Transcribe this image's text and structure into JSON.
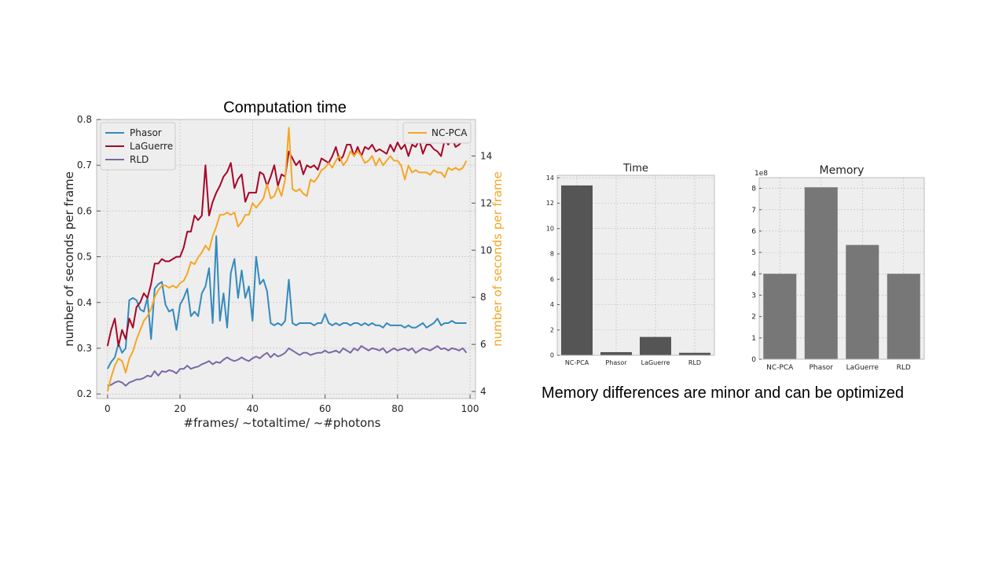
{
  "slide": {
    "title": "Computation time",
    "caption": "Memory differences are minor and can be optimized"
  },
  "colors": {
    "phasor": "#348abd",
    "laguerre": "#a60628",
    "rld": "#7a68a6",
    "ncpca": "#f5a623",
    "bar_time": "#555555",
    "bar_memory": "#777777",
    "plot_bg": "#eeeeee",
    "grid": "#bbbbbb"
  },
  "chart_data": [
    {
      "id": "main",
      "type": "line",
      "xlabel": "#frames/ ~totaltime/ ~#photons",
      "ylabel": "number of seconds per frame",
      "y2label": "number of seconds per frame",
      "xlim": [
        -3,
        101.5
      ],
      "ylim": [
        0.19,
        0.8
      ],
      "y2lim": [
        3.7,
        15.55
      ],
      "xticks": [
        0,
        20,
        40,
        60,
        80,
        100
      ],
      "yticks": [
        0.2,
        0.3,
        0.4,
        0.5,
        0.6,
        0.7,
        0.8
      ],
      "y2ticks": [
        4,
        6,
        8,
        10,
        12,
        14
      ],
      "grid": true,
      "legend_left_position": "top-left",
      "legend_right_position": "top-right",
      "series": [
        {
          "name": "Phasor",
          "axis": "left",
          "color": "#348abd",
          "x": [
            0,
            1,
            2,
            3,
            4,
            5,
            6,
            7,
            8,
            9,
            10,
            11,
            12,
            13,
            14,
            15,
            16,
            17,
            18,
            19,
            20,
            21,
            22,
            23,
            24,
            25,
            26,
            27,
            28,
            29,
            30,
            31,
            32,
            33,
            34,
            35,
            36,
            37,
            38,
            39,
            40,
            41,
            42,
            43,
            44,
            45,
            46,
            47,
            48,
            49,
            50,
            51,
            52,
            53,
            54,
            55,
            56,
            57,
            58,
            59,
            60,
            61,
            62,
            63,
            64,
            65,
            66,
            67,
            68,
            69,
            70,
            71,
            72,
            73,
            74,
            75,
            76,
            77,
            78,
            79,
            80,
            81,
            82,
            83,
            84,
            85,
            86,
            87,
            88,
            89,
            90,
            91,
            92,
            93,
            94,
            95,
            96,
            97,
            98,
            99
          ],
          "values": [
            0.255,
            0.27,
            0.28,
            0.31,
            0.29,
            0.3,
            0.405,
            0.41,
            0.405,
            0.385,
            0.38,
            0.41,
            0.32,
            0.43,
            0.44,
            0.445,
            0.395,
            0.38,
            0.385,
            0.34,
            0.395,
            0.41,
            0.43,
            0.37,
            0.38,
            0.37,
            0.42,
            0.435,
            0.475,
            0.355,
            0.545,
            0.36,
            0.42,
            0.345,
            0.465,
            0.495,
            0.41,
            0.47,
            0.41,
            0.435,
            0.36,
            0.5,
            0.44,
            0.45,
            0.425,
            0.355,
            0.35,
            0.355,
            0.35,
            0.36,
            0.45,
            0.355,
            0.35,
            0.355,
            0.355,
            0.355,
            0.355,
            0.35,
            0.355,
            0.355,
            0.375,
            0.355,
            0.35,
            0.355,
            0.35,
            0.355,
            0.355,
            0.35,
            0.355,
            0.355,
            0.35,
            0.355,
            0.35,
            0.355,
            0.35,
            0.35,
            0.345,
            0.355,
            0.35,
            0.35,
            0.35,
            0.35,
            0.345,
            0.35,
            0.345,
            0.345,
            0.35,
            0.355,
            0.345,
            0.35,
            0.355,
            0.365,
            0.35,
            0.355,
            0.355,
            0.36,
            0.355,
            0.355,
            0.355,
            0.355
          ]
        },
        {
          "name": "LaGuerre",
          "axis": "left",
          "color": "#a60628",
          "x": [
            0,
            1,
            2,
            3,
            4,
            5,
            6,
            7,
            8,
            9,
            10,
            11,
            12,
            13,
            14,
            15,
            16,
            17,
            18,
            19,
            20,
            21,
            22,
            23,
            24,
            25,
            26,
            27,
            28,
            29,
            30,
            31,
            32,
            33,
            34,
            35,
            36,
            37,
            38,
            39,
            40,
            41,
            42,
            43,
            44,
            45,
            46,
            47,
            48,
            49,
            50,
            51,
            52,
            53,
            54,
            55,
            56,
            57,
            58,
            59,
            60,
            61,
            62,
            63,
            64,
            65,
            66,
            67,
            68,
            69,
            70,
            71,
            72,
            73,
            74,
            75,
            76,
            77,
            78,
            79,
            80,
            81,
            82,
            83,
            84,
            85,
            86,
            87,
            88,
            89,
            90,
            91,
            92,
            93,
            94,
            95,
            96,
            97,
            98,
            99
          ],
          "values": [
            0.305,
            0.34,
            0.365,
            0.305,
            0.34,
            0.32,
            0.365,
            0.345,
            0.39,
            0.4,
            0.42,
            0.41,
            0.44,
            0.485,
            0.485,
            0.495,
            0.49,
            0.49,
            0.495,
            0.5,
            0.5,
            0.52,
            0.555,
            0.555,
            0.59,
            0.58,
            0.59,
            0.7,
            0.59,
            0.62,
            0.64,
            0.655,
            0.675,
            0.685,
            0.705,
            0.65,
            0.67,
            0.68,
            0.62,
            0.64,
            0.64,
            0.64,
            0.685,
            0.68,
            0.655,
            0.675,
            0.7,
            0.655,
            0.68,
            0.675,
            0.73,
            0.715,
            0.7,
            0.71,
            0.68,
            0.7,
            0.695,
            0.7,
            0.69,
            0.715,
            0.71,
            0.705,
            0.72,
            0.74,
            0.71,
            0.72,
            0.745,
            0.745,
            0.72,
            0.74,
            0.72,
            0.74,
            0.735,
            0.745,
            0.73,
            0.735,
            0.73,
            0.725,
            0.745,
            0.73,
            0.75,
            0.735,
            0.745,
            0.72,
            0.745,
            0.74,
            0.755,
            0.725,
            0.745,
            0.745,
            0.735,
            0.73,
            0.72,
            0.755,
            0.745,
            0.76,
            0.74,
            0.745,
            0.755,
            0.75
          ]
        },
        {
          "name": "RLD",
          "axis": "left",
          "color": "#7a68a6",
          "x": [
            0,
            1,
            2,
            3,
            4,
            5,
            6,
            7,
            8,
            9,
            10,
            11,
            12,
            13,
            14,
            15,
            16,
            17,
            18,
            19,
            20,
            21,
            22,
            23,
            24,
            25,
            26,
            27,
            28,
            29,
            30,
            31,
            32,
            33,
            34,
            35,
            36,
            37,
            38,
            39,
            40,
            41,
            42,
            43,
            44,
            45,
            46,
            47,
            48,
            49,
            50,
            51,
            52,
            53,
            54,
            55,
            56,
            57,
            58,
            59,
            60,
            61,
            62,
            63,
            64,
            65,
            66,
            67,
            68,
            69,
            70,
            71,
            72,
            73,
            74,
            75,
            76,
            77,
            78,
            79,
            80,
            81,
            82,
            83,
            84,
            85,
            86,
            87,
            88,
            89,
            90,
            91,
            92,
            93,
            94,
            95,
            96,
            97,
            98,
            99
          ],
          "values": [
            0.218,
            0.22,
            0.225,
            0.228,
            0.225,
            0.218,
            0.225,
            0.228,
            0.232,
            0.232,
            0.235,
            0.24,
            0.238,
            0.25,
            0.24,
            0.25,
            0.248,
            0.252,
            0.25,
            0.245,
            0.255,
            0.255,
            0.262,
            0.255,
            0.258,
            0.26,
            0.265,
            0.268,
            0.272,
            0.265,
            0.27,
            0.268,
            0.275,
            0.28,
            0.275,
            0.272,
            0.275,
            0.28,
            0.275,
            0.272,
            0.278,
            0.282,
            0.278,
            0.285,
            0.29,
            0.28,
            0.288,
            0.282,
            0.285,
            0.29,
            0.3,
            0.295,
            0.29,
            0.285,
            0.29,
            0.29,
            0.285,
            0.288,
            0.29,
            0.29,
            0.295,
            0.29,
            0.292,
            0.295,
            0.29,
            0.3,
            0.295,
            0.29,
            0.3,
            0.295,
            0.305,
            0.3,
            0.295,
            0.3,
            0.298,
            0.295,
            0.3,
            0.29,
            0.295,
            0.3,
            0.295,
            0.298,
            0.3,
            0.295,
            0.3,
            0.29,
            0.295,
            0.3,
            0.298,
            0.295,
            0.3,
            0.305,
            0.298,
            0.3,
            0.295,
            0.3,
            0.298,
            0.295,
            0.3,
            0.29
          ]
        },
        {
          "name": "NC-PCA",
          "axis": "right",
          "color": "#f5a623",
          "x": [
            0,
            1,
            2,
            3,
            4,
            5,
            6,
            7,
            8,
            9,
            10,
            11,
            12,
            13,
            14,
            15,
            16,
            17,
            18,
            19,
            20,
            21,
            22,
            23,
            24,
            25,
            26,
            27,
            28,
            29,
            30,
            31,
            32,
            33,
            34,
            35,
            36,
            37,
            38,
            39,
            40,
            41,
            42,
            43,
            44,
            45,
            46,
            47,
            48,
            49,
            50,
            51,
            52,
            53,
            54,
            55,
            56,
            57,
            58,
            59,
            60,
            61,
            62,
            63,
            64,
            65,
            66,
            67,
            68,
            69,
            70,
            71,
            72,
            73,
            74,
            75,
            76,
            77,
            78,
            79,
            80,
            81,
            82,
            83,
            84,
            85,
            86,
            87,
            88,
            89,
            90,
            91,
            92,
            93,
            94,
            95,
            96,
            97,
            98,
            99
          ],
          "values": [
            4.0,
            4.6,
            5.1,
            5.4,
            5.3,
            4.8,
            5.4,
            5.7,
            6.2,
            6.6,
            7.0,
            7.2,
            7.5,
            8.0,
            8.3,
            8.5,
            8.5,
            8.4,
            8.5,
            8.4,
            8.6,
            8.7,
            9.0,
            9.5,
            9.4,
            9.7,
            9.9,
            10.2,
            10.0,
            10.6,
            11.0,
            11.5,
            11.5,
            11.6,
            11.5,
            11.6,
            11.0,
            11.2,
            11.5,
            11.5,
            12.0,
            11.8,
            12.0,
            12.2,
            12.8,
            12.2,
            12.3,
            12.7,
            12.3,
            13.0,
            15.2,
            12.6,
            12.5,
            12.6,
            12.4,
            12.3,
            13.0,
            12.9,
            13.1,
            13.4,
            13.5,
            13.7,
            13.5,
            13.8,
            14.0,
            13.6,
            13.8,
            14.2,
            14.0,
            14.2,
            14.0,
            13.7,
            13.8,
            14.0,
            13.6,
            13.9,
            13.6,
            13.8,
            14.0,
            13.8,
            13.8,
            13.6,
            13.0,
            13.6,
            13.3,
            13.4,
            13.3,
            13.3,
            13.3,
            13.2,
            13.4,
            13.3,
            13.3,
            13.1,
            13.5,
            13.4,
            13.5,
            13.4,
            13.5,
            13.8
          ]
        }
      ]
    },
    {
      "id": "time",
      "type": "bar",
      "title": "Time",
      "categories": [
        "NC-PCA",
        "Phasor",
        "LaGuerre",
        "RLD"
      ],
      "values": [
        13.4,
        0.25,
        1.45,
        0.2
      ],
      "ylim": [
        0,
        14.2
      ],
      "yticks": [
        0,
        2,
        4,
        6,
        8,
        10,
        12,
        14
      ],
      "grid": true
    },
    {
      "id": "memory",
      "type": "bar",
      "title": "Memory",
      "offset_label": "1e8",
      "categories": [
        "NC-PCA",
        "Phasor",
        "LaGuerre",
        "RLD"
      ],
      "values": [
        4.0,
        8.05,
        5.35,
        4.0
      ],
      "ylim": [
        0,
        8.5
      ],
      "yticks": [
        0,
        1,
        2,
        3,
        4,
        5,
        6,
        7,
        8
      ],
      "grid": true
    }
  ]
}
